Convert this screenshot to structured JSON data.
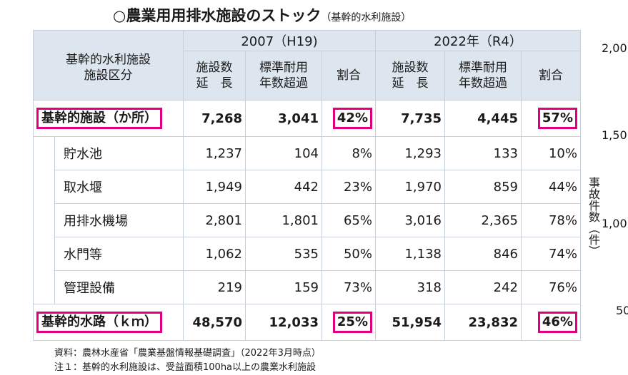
{
  "title": "○農業用用排水施設のストック",
  "subtitle": "（基幹的水利施設）",
  "header": {
    "category": "基幹的水利施設\n施設区分",
    "year_2007": "2007（H19)",
    "year_2022": "2022年（R4）",
    "col_count": "施設数\n延　長",
    "col_exceed": "標準耐用\n年数超過",
    "col_ratio": "割合"
  },
  "rows": [
    {
      "name": "基幹的施設（か所）",
      "c2007": "7,268",
      "e2007": "3,041",
      "r2007": "42%",
      "c2022": "7,735",
      "e2022": "4,445",
      "r2022": "57%"
    },
    {
      "name": "貯水池",
      "c2007": "1,237",
      "e2007": "104",
      "r2007": "8%",
      "c2022": "1,293",
      "e2022": "133",
      "r2022": "10%"
    },
    {
      "name": "取水堰",
      "c2007": "1,949",
      "e2007": "442",
      "r2007": "23%",
      "c2022": "1,970",
      "e2022": "859",
      "r2022": "44%"
    },
    {
      "name": "用排水機場",
      "c2007": "2,801",
      "e2007": "1,801",
      "r2007": "65%",
      "c2022": "3,016",
      "e2022": "2,365",
      "r2022": "78%"
    },
    {
      "name": "水門等",
      "c2007": "1,062",
      "e2007": "535",
      "r2007": "50%",
      "c2022": "1,138",
      "e2022": "846",
      "r2022": "74%"
    },
    {
      "name": "管理設備",
      "c2007": "219",
      "e2007": "159",
      "r2007": "73%",
      "c2022": "318",
      "e2022": "242",
      "r2022": "76%"
    },
    {
      "name": "基幹的水路（ｋｍ）",
      "c2007": "48,570",
      "e2007": "12,033",
      "r2007": "25%",
      "c2022": "51,954",
      "e2022": "23,832",
      "r2022": "46%"
    }
  ],
  "notes": {
    "source": "資料：農林水産省「農業基盤情報基礎調査」（2022年3月時点）",
    "note1": "注１：基幹的水利施設は、受益面積100ha以上の農業水利施設"
  },
  "side_axis": {
    "ticks": [
      "2,00",
      "1,50",
      "1,00",
      "50"
    ],
    "label": "事故件数（件）"
  },
  "colors": {
    "highlight": "#e0007f",
    "header_bg": "#dde6ef",
    "border": "#c7cfd8"
  }
}
